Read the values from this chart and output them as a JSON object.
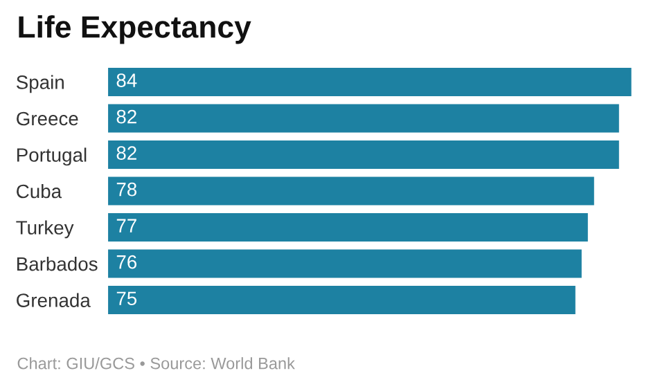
{
  "chart_data": {
    "type": "bar",
    "orientation": "horizontal",
    "title": "Life Expectancy",
    "categories": [
      "Spain",
      "Greece",
      "Portugal",
      "Cuba",
      "Turkey",
      "Barbados",
      "Grenada"
    ],
    "values": [
      84,
      82,
      82,
      78,
      77,
      76,
      75
    ],
    "color": "#1d81a2",
    "data_labels": true,
    "annotations": [
      "Chart: GIU/GCS • Source: World Bank"
    ]
  }
}
